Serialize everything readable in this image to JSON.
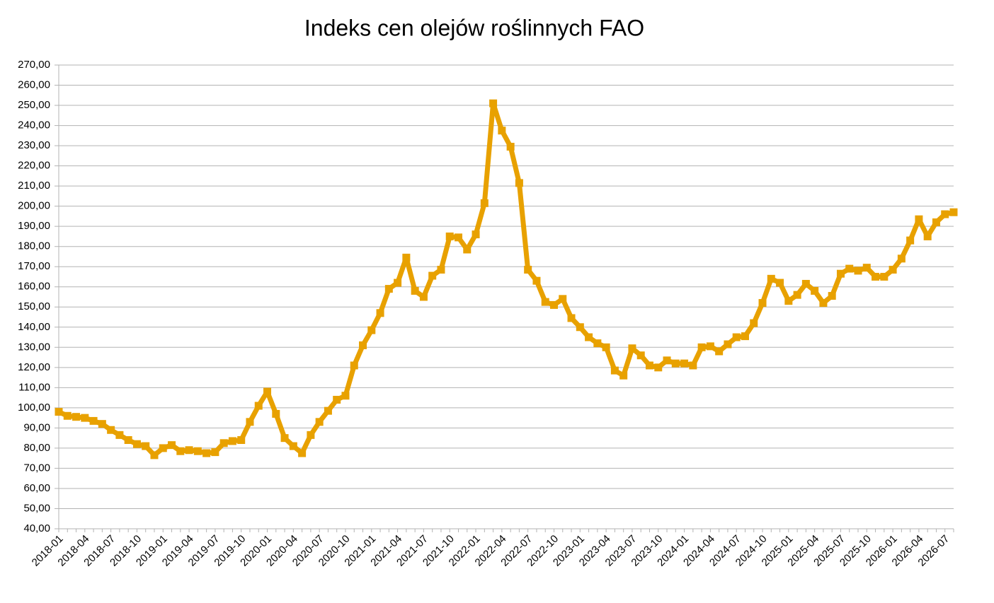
{
  "chart_data": {
    "type": "line",
    "title": "Indeks cen olejów roślinnych FAO",
    "categories": [
      "2018-01",
      null,
      null,
      "2018-04",
      null,
      null,
      "2018-07",
      null,
      null,
      "2018-10",
      null,
      null,
      "2019-01",
      null,
      null,
      "2019-04",
      null,
      null,
      "2019-07",
      null,
      null,
      "2019-10",
      null,
      null,
      "2020-01",
      null,
      null,
      "2020-04",
      null,
      null,
      "2020-07",
      null,
      null,
      "2020-10",
      null,
      null,
      "2021-01",
      null,
      null,
      "2021-04",
      null,
      null,
      "2021-07",
      null,
      null,
      "2021-10",
      null,
      null,
      "2022-01",
      null,
      null,
      "2022-04",
      null,
      null,
      "2022-07",
      null,
      null,
      "2022-10",
      null,
      null,
      "2023-01",
      null,
      null,
      "2023-04",
      null,
      null,
      "2023-07",
      null,
      null,
      "2023-10",
      null,
      null,
      "2024-01",
      null,
      null,
      "2024-04",
      null,
      null,
      "2024-07",
      null,
      null,
      "2024-10",
      null,
      null,
      "2025-01",
      null,
      null,
      "2025-04",
      null,
      null,
      "2025-07",
      null,
      null,
      "2025-10",
      null,
      null,
      "2026-01",
      null,
      null,
      "2026-04",
      null,
      null,
      "2026-07",
      null
    ],
    "series": [
      {
        "color": "#e8a100",
        "values": [
          98,
          96,
          95.5,
          95,
          93.5,
          92,
          89,
          86.5,
          84,
          82,
          81,
          76.5,
          80,
          81.5,
          78.5,
          79,
          78.5,
          77.5,
          78,
          82.5,
          83.5,
          84,
          93,
          101,
          108,
          97,
          85,
          81,
          77.5,
          86.5,
          93,
          98.5,
          104,
          106,
          121,
          131,
          138.5,
          147,
          159,
          162,
          174.5,
          158,
          155,
          165.5,
          168.5,
          185,
          184.5,
          178.5,
          186,
          201.5,
          251,
          237.5,
          229.5,
          211.5,
          168.5,
          163,
          152.5,
          151,
          154,
          144.5,
          140,
          135,
          132,
          130,
          118.5,
          116,
          129.5,
          126,
          121,
          120,
          123.5,
          122,
          122,
          121,
          130,
          130.5,
          128,
          131.5,
          135,
          135.5,
          142,
          152,
          164,
          162,
          153,
          156,
          161.5,
          158,
          152,
          155.5,
          166.5,
          169,
          168,
          169.5,
          165,
          165,
          168.5,
          174,
          183,
          193.5,
          185,
          192,
          196,
          197
        ]
      }
    ],
    "ylim": [
      40,
      270
    ],
    "yticks": [
      {
        "value": 40,
        "label": "40,00"
      },
      {
        "value": 50,
        "label": "50,00"
      },
      {
        "value": 60,
        "label": "60,00"
      },
      {
        "value": 70,
        "label": "70,00"
      },
      {
        "value": 80,
        "label": "80,00"
      },
      {
        "value": 90,
        "label": "90,00"
      },
      {
        "value": 100,
        "label": "100,00"
      },
      {
        "value": 110,
        "label": "110,00"
      },
      {
        "value": 120,
        "label": "120,00"
      },
      {
        "value": 130,
        "label": "130,00"
      },
      {
        "value": 140,
        "label": "140,00"
      },
      {
        "value": 150,
        "label": "150,00"
      },
      {
        "value": 160,
        "label": "160,00"
      },
      {
        "value": 170,
        "label": "170,00"
      },
      {
        "value": 180,
        "label": "180,00"
      },
      {
        "value": 190,
        "label": "190,00"
      },
      {
        "value": 200,
        "label": "200,00"
      },
      {
        "value": 210,
        "label": "210,00"
      },
      {
        "value": 220,
        "label": "220,00"
      },
      {
        "value": 230,
        "label": "230,00"
      },
      {
        "value": 240,
        "label": "240,00"
      },
      {
        "value": 250,
        "label": "250,00"
      },
      {
        "value": 260,
        "label": "260,00"
      },
      {
        "value": 270,
        "label": "270,00"
      }
    ],
    "grid": true
  }
}
